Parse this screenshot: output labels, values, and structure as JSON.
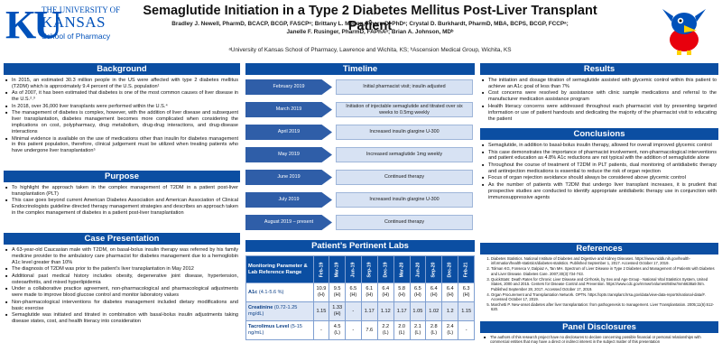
{
  "header": {
    "logo_ku": "KU",
    "logo_line1": "THE UNIVERSITY OF",
    "logo_line2": "KANSAS",
    "logo_line3": "School of Pharmacy",
    "title": "Semaglutide Initiation in a Type 2 Diabetes Mellitus Post-Liver Transplant Patient",
    "authors_line1": "Bradley J. Newell, PharmD, BCACP, BCGP, FASCPᵃ; Brittany L. Melton, PharmD, PhDᵃ; Crystal D. Burkhardt, PharmD, MBA, BCPS, BCGP, FCCPᵃ;",
    "authors_line2": "Janelle F. Rusinger, PharmD, FAPhAᵃ; Brian A. Johnson, MDᵇ",
    "affiliation": "ᵃUniversity of Kansas School of Pharmacy, Lawrence and Wichita, KS; ᵇAscension Medical Group, Wichita, KS"
  },
  "sections": {
    "background": "Background",
    "purpose": "Purpose",
    "case": "Case Presentation",
    "timeline": "Timeline",
    "labs": "Patient’s Pertinent Labs",
    "results": "Results",
    "conclusions": "Conclusions",
    "references": "References",
    "disclosures": "Panel Disclosures"
  },
  "background": [
    "In 2015, an estimated 30.3 million people in the US were affected with type 2 diabetes mellitus (T2DM) which is approximately 9.4 percent of the U.S. population¹",
    "As of 2007, it has been estimated that diabetes is one of the most common causes of liver disease in the U.S.²˒³",
    "In 2018, over 36,000 liver transplants were performed within the U.S.⁴",
    "The management of diabetes is complex, however, with the addition of liver disease and subsequent liver transplantation, diabetes management becomes more complicated when considering the implications on cost, polypharmacy, drug metabolism, drug-drug interactions, and drug-disease interactions",
    "Minimal evidence is available on the use of medications other than insulin for diabetes management in this patient population, therefore, clinical judgement must be utilized when treating patients who have undergone liver transplantation⁵"
  ],
  "purpose": [
    "To highlight the approach taken in the complex management of T2DM in a patient post-liver transplantation (PLT)",
    "This case goes beyond current American Diabetes Association and American Association of Clinical Endocrinologists guideline directed therapy management strategies and describes an approach taken in the complex management of diabetes in a patient post-liver transplantation"
  ],
  "case": [
    "A 63-year-old Caucasian male with T2DM, on basal-bolus insulin therapy was referred by his family medicine provider to the ambulatory care pharmacist for diabetes management due to a hemoglobin A1c level greater than 10%",
    "The diagnosis of T2DM was prior to the patient’s liver transplantation in May 2012",
    "Additional past medical history includes obesity, degenerative joint disease, hypertension, osteoarthritis, and mixed hyperlipidemia",
    "Under a collaborative practice agreement, non-pharmacological and pharmacological adjustments were made to improve blood glucose control and monitor laboratory values",
    "Non-pharmacological interventions for diabetes management included dietary modifications and basic exercise",
    "Semaglutide was initiated and titrated in combination with basal-bolus insulin adjustments taking disease states, cost, and health literacy into consideration"
  ],
  "timeline": [
    {
      "date": "February 2019",
      "event": "Initial pharmacist visit; insulin adjusted"
    },
    {
      "date": "March 2019",
      "event": "Initiation of injectable semaglutide and titrated over six weeks to 0.5mg weekly"
    },
    {
      "date": "April 2019",
      "event": "Increased insulin glargine U-300"
    },
    {
      "date": "May 2019",
      "event": "Increased semaglutide 1mg weekly"
    },
    {
      "date": "June 2019",
      "event": "Continued therapy"
    },
    {
      "date": "July 2019",
      "event": "Increased insulin glargine U-300"
    },
    {
      "date": "August 2019 – present",
      "event": "Continued therapy"
    }
  ],
  "labs": {
    "param_header": "Monitoring Parameter & Lab Reference Range",
    "columns": [
      "Feb-19",
      "Mar-19",
      "Jun-19",
      "Sep-19",
      "Dec-19",
      "Mar-20",
      "Jun-20",
      "Sep-20",
      "Dec-20",
      "Feb-21"
    ],
    "rows": [
      {
        "name": "A1c",
        "range": "(4.1-5.6 %)",
        "values": [
          "10.9 (H)",
          "9.5 (H)",
          "6.5 (H)",
          "6.1 (H)",
          "6.4 (H)",
          "5.8 (H)",
          "6.5 (H)",
          "6.4 (H)",
          "6.4 (H)",
          "6.3 (H)"
        ]
      },
      {
        "name": "Creatinine",
        "range": "(0.72-1.25 mg/dL)",
        "values": [
          "1.15",
          "1.33 (H)",
          "-",
          "1.17",
          "1.12",
          "1.17",
          "1.05",
          "1.02",
          "1.2",
          "1.15"
        ]
      },
      {
        "name": "Tacrolimus Level",
        "range": "(5-15 ng/mL)",
        "values": [
          "-",
          "4.5 (L)",
          "-",
          "7.6",
          "2.2 (L)",
          "2.0 (L)",
          "2.1 (L)",
          "2.8 (L)",
          "2.4 (L)",
          "-"
        ]
      }
    ]
  },
  "results": [
    "The initiation and dosage titration of semaglutide assisted with glycemic control within this patient to achieve an A1c goal of less than 7%",
    "Cost concerns were resolved by assistance with clinic sample medications and referral to the manufacturer medication assistance program",
    "Health literacy concerns were addressed throughout each pharmacist visit by presenting targeted information or use of patient handouts and dedicating the majority of the pharmacist visit to educating the patient"
  ],
  "conclusions": [
    "Semaglutide, in addition to basal-bolus insulin therapy, allowed for overall improved glycemic control",
    "This case demonstrates the importance of pharmacist involvement, non-pharmacological interventions and patient education as 4.8% A1c reductions are not typical with the addition of semaglutide alone",
    "Throughout the course of treatment of T2DM in PLT patients, dual monitoring of antidiabetic therapy and antirejection medications is essential to reduce the risk of organ rejection",
    "Focus of organ rejection avoidance should always be considered above glycemic control",
    "As the number of patients with T2DM that undergo liver transplant increases, it is prudent that prospective studies are conducted to identify appropriate antidiabetic therapy use in conjunction with immunosuppressive agents"
  ],
  "references": [
    "Diabetes Statistics. National Institute of Diabetes and Digestive and Kidney Diseases. https://www.niddk.nih.gov/health-information/health-statistics/diabetes-statistics. Published September 1, 2017. Accessed October 17, 2019.",
    "Tolman KG, Fonseca V, Dalpiaz A, Tan MH. Spectrum of Liver Disease in Type 2 Diabetes and Management of Patients with Diabetes and Liver Disease. Diabetes Care. 2007;30(3):734-743.",
    "QuickStats: Death Rates for Chronic Liver Disease and Cirrhosis, by Sex and Age Group - National Vital Statistics System, United States, 2000 and 2015. Centers for Disease Control and Prevention. https://www.cdc.gov/mmwr/volumes/66/wr/mm6638a9.htm. Published September 28, 2017. Accessed October 17, 2019.",
    "Organ Procurement and Transplantation Network. OPTN. https://optn.transplant.hrsa.gov/data/view-data-reports/national-data/#. Accessed October 17, 2019.",
    "Marchetti P. New-onset diabetes after liver transplantation: from pathogenesis to management. Liver Transplantation. 2005;11(6):612-620."
  ],
  "disclosures": "The authors of this research project have no disclosures to declare concerning possible financial or personal relationships with commercial entities that may have a direct or indirect interest in the subject matter of this presentation",
  "colors": {
    "primary_blue": "#0b4ea2",
    "timeline_blue": "#2f5ea8",
    "timeline_light": "#d7e2f3",
    "ku_red": "#e8000d"
  },
  "icons": {
    "jayhawk": "jayhawk-mascot-icon"
  }
}
